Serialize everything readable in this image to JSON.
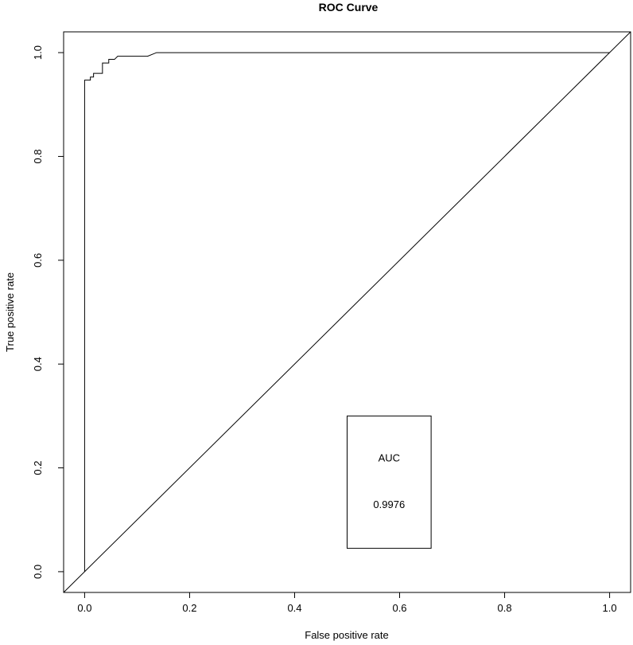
{
  "chart_data": {
    "type": "line",
    "title": "ROC Curve",
    "xlabel": "False positive rate",
    "ylabel": "True positive rate",
    "xlim": [
      -0.04,
      1.04
    ],
    "ylim": [
      -0.04,
      1.04
    ],
    "x_ticks": [
      {
        "value": 0.0,
        "label": "0.0"
      },
      {
        "value": 0.2,
        "label": "0.2"
      },
      {
        "value": 0.4,
        "label": "0.4"
      },
      {
        "value": 0.6,
        "label": "0.6"
      },
      {
        "value": 0.8,
        "label": "0.8"
      },
      {
        "value": 1.0,
        "label": "1.0"
      }
    ],
    "y_ticks": [
      {
        "value": 0.0,
        "label": "0.0"
      },
      {
        "value": 0.2,
        "label": "0.2"
      },
      {
        "value": 0.4,
        "label": "0.4"
      },
      {
        "value": 0.6,
        "label": "0.6"
      },
      {
        "value": 0.8,
        "label": "0.8"
      },
      {
        "value": 1.0,
        "label": "1.0"
      }
    ],
    "grid": false,
    "series": [
      {
        "values": [
          [
            0.0,
            0.0
          ],
          [
            0.0,
            0.947
          ],
          [
            0.011,
            0.947
          ],
          [
            0.011,
            0.953
          ],
          [
            0.017,
            0.953
          ],
          [
            0.017,
            0.96
          ],
          [
            0.034,
            0.96
          ],
          [
            0.034,
            0.98
          ],
          [
            0.046,
            0.98
          ],
          [
            0.046,
            0.987
          ],
          [
            0.057,
            0.987
          ],
          [
            0.063,
            0.993
          ],
          [
            0.12,
            0.993
          ],
          [
            0.137,
            1.0
          ],
          [
            1.0,
            1.0
          ]
        ],
        "color": "#000000"
      },
      {
        "values": [
          [
            -0.04,
            -0.04
          ],
          [
            1.04,
            1.04
          ]
        ],
        "color": "#000000"
      }
    ],
    "annotation_box": {
      "x_range": [
        0.5,
        0.66
      ],
      "y_range": [
        0.045,
        0.3
      ],
      "label": "AUC",
      "label_at": [
        0.58,
        0.22
      ],
      "value": "0.9976",
      "value_at": [
        0.58,
        0.13
      ]
    }
  }
}
